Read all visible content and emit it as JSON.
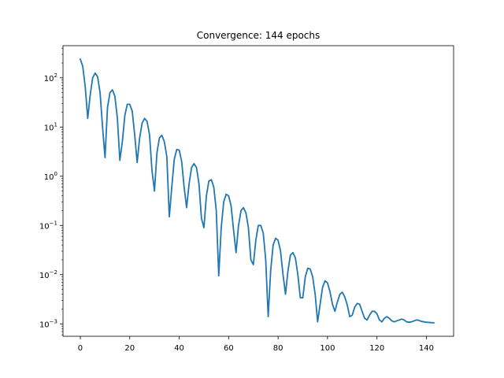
{
  "chart_data": {
    "type": "line",
    "title": "Convergence: 144 epochs",
    "xlabel": "",
    "ylabel": "",
    "x_scale": "linear",
    "y_scale": "log",
    "xlim": [
      -7,
      151
    ],
    "ylim": [
      0.00056,
      450
    ],
    "grid": false,
    "legend": "none",
    "color": "#1f77b4",
    "x_ticks": [
      0,
      20,
      40,
      60,
      80,
      100,
      120,
      140
    ],
    "x_tick_labels": [
      "0",
      "20",
      "40",
      "60",
      "80",
      "100",
      "120",
      "140"
    ],
    "y_ticks": [
      0.001,
      0.01,
      0.1,
      1,
      10,
      100
    ],
    "y_tick_labels": [
      {
        "base": "10",
        "exp": "−3"
      },
      {
        "base": "10",
        "exp": "−2"
      },
      {
        "base": "10",
        "exp": "−1"
      },
      {
        "base": "10",
        "exp": "0"
      },
      {
        "base": "10",
        "exp": "1"
      },
      {
        "base": "10",
        "exp": "2"
      }
    ],
    "series": [
      {
        "points": [
          [
            0,
            240
          ],
          [
            1,
            170
          ],
          [
            2,
            65
          ],
          [
            3,
            15
          ],
          [
            4,
            45
          ],
          [
            5,
            100
          ],
          [
            6,
            125
          ],
          [
            7,
            105
          ],
          [
            8,
            50
          ],
          [
            9,
            10
          ],
          [
            10,
            2.4
          ],
          [
            11,
            25
          ],
          [
            12,
            50
          ],
          [
            13,
            57
          ],
          [
            14,
            42
          ],
          [
            15,
            15
          ],
          [
            16,
            2.1
          ],
          [
            17,
            5
          ],
          [
            18,
            17
          ],
          [
            19,
            29
          ],
          [
            20,
            29
          ],
          [
            21,
            21
          ],
          [
            22,
            7
          ],
          [
            23,
            1.9
          ],
          [
            24,
            6
          ],
          [
            25,
            12
          ],
          [
            26,
            15
          ],
          [
            27,
            13
          ],
          [
            28,
            7
          ],
          [
            29,
            1.3
          ],
          [
            30,
            0.5
          ],
          [
            31,
            3
          ],
          [
            32,
            6
          ],
          [
            33,
            6.8
          ],
          [
            34,
            5
          ],
          [
            35,
            2.5
          ],
          [
            36,
            0.15
          ],
          [
            37,
            0.6
          ],
          [
            38,
            2.2
          ],
          [
            39,
            3.5
          ],
          [
            40,
            3.4
          ],
          [
            41,
            2
          ],
          [
            42,
            0.6
          ],
          [
            43,
            0.23
          ],
          [
            44,
            0.7
          ],
          [
            45,
            1.5
          ],
          [
            46,
            1.8
          ],
          [
            47,
            1.5
          ],
          [
            48,
            0.7
          ],
          [
            49,
            0.14
          ],
          [
            50,
            0.09
          ],
          [
            51,
            0.4
          ],
          [
            52,
            0.8
          ],
          [
            53,
            0.85
          ],
          [
            54,
            0.6
          ],
          [
            55,
            0.2
          ],
          [
            56,
            0.0095
          ],
          [
            57,
            0.09
          ],
          [
            58,
            0.3
          ],
          [
            59,
            0.43
          ],
          [
            60,
            0.4
          ],
          [
            61,
            0.25
          ],
          [
            62,
            0.08
          ],
          [
            63,
            0.028
          ],
          [
            64,
            0.1
          ],
          [
            65,
            0.2
          ],
          [
            66,
            0.23
          ],
          [
            67,
            0.18
          ],
          [
            68,
            0.09
          ],
          [
            69,
            0.02
          ],
          [
            70,
            0.016
          ],
          [
            71,
            0.05
          ],
          [
            72,
            0.1
          ],
          [
            73,
            0.1
          ],
          [
            74,
            0.07
          ],
          [
            75,
            0.02
          ],
          [
            76,
            0.0014
          ],
          [
            77,
            0.012
          ],
          [
            78,
            0.04
          ],
          [
            79,
            0.055
          ],
          [
            80,
            0.05
          ],
          [
            81,
            0.03
          ],
          [
            82,
            0.01
          ],
          [
            83,
            0.004
          ],
          [
            84,
            0.012
          ],
          [
            85,
            0.025
          ],
          [
            86,
            0.028
          ],
          [
            87,
            0.022
          ],
          [
            88,
            0.01
          ],
          [
            89,
            0.0034
          ],
          [
            90,
            0.0034
          ],
          [
            91,
            0.009
          ],
          [
            92,
            0.0135
          ],
          [
            93,
            0.013
          ],
          [
            94,
            0.009
          ],
          [
            95,
            0.004
          ],
          [
            96,
            0.0011
          ],
          [
            97,
            0.0025
          ],
          [
            98,
            0.0055
          ],
          [
            99,
            0.0075
          ],
          [
            100,
            0.0068
          ],
          [
            101,
            0.0045
          ],
          [
            102,
            0.0025
          ],
          [
            103,
            0.0018
          ],
          [
            104,
            0.0028
          ],
          [
            105,
            0.004
          ],
          [
            106,
            0.0044
          ],
          [
            107,
            0.0035
          ],
          [
            108,
            0.0024
          ],
          [
            109,
            0.0014
          ],
          [
            110,
            0.0015
          ],
          [
            111,
            0.0022
          ],
          [
            112,
            0.0026
          ],
          [
            113,
            0.0025
          ],
          [
            114,
            0.0018
          ],
          [
            115,
            0.0013
          ],
          [
            116,
            0.0012
          ],
          [
            117,
            0.0015
          ],
          [
            118,
            0.0018
          ],
          [
            119,
            0.0018
          ],
          [
            120,
            0.0016
          ],
          [
            121,
            0.0012
          ],
          [
            122,
            0.0011
          ],
          [
            123,
            0.0013
          ],
          [
            124,
            0.0014
          ],
          [
            125,
            0.0013
          ],
          [
            126,
            0.00115
          ],
          [
            127,
            0.0011
          ],
          [
            128,
            0.00115
          ],
          [
            129,
            0.0012
          ],
          [
            130,
            0.00125
          ],
          [
            131,
            0.0012
          ],
          [
            132,
            0.0011
          ],
          [
            133,
            0.00108
          ],
          [
            134,
            0.0011
          ],
          [
            135,
            0.00115
          ],
          [
            136,
            0.0012
          ],
          [
            137,
            0.00118
          ],
          [
            138,
            0.00112
          ],
          [
            139,
            0.0011
          ],
          [
            140,
            0.00108
          ],
          [
            141,
            0.00107
          ],
          [
            142,
            0.00106
          ],
          [
            143,
            0.00105
          ]
        ]
      }
    ]
  }
}
